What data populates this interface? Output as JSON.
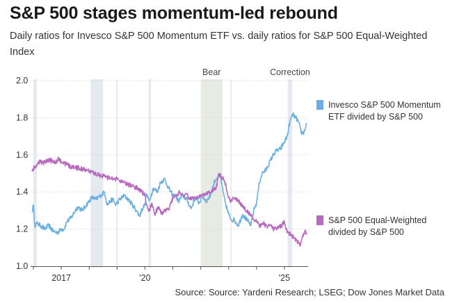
{
  "title": "S&P 500 stages momentum-led rebound",
  "subtitle": "Daily ratios for Invesco S&P 500 Momentum ETF vs. daily ratios for S&P 500 Equal-Weighted Index",
  "source": "Source: Source: Yardeni Research; LSEG; Dow Jones Market Data",
  "colors": {
    "momentum": "#6aafe0",
    "equal": "#b86ac0",
    "shade": "#e4eaef",
    "bear_shade": "#e6ebe3",
    "grid": "#d5d5d5"
  },
  "chart_data": {
    "type": "line",
    "title": "S&P 500 stages momentum-led rebound",
    "xlabel": "",
    "ylabel": "",
    "xlim": [
      2015.9,
      2025.85
    ],
    "ylim": [
      1.0,
      2.0
    ],
    "y_ticks": [
      1.0,
      1.2,
      1.4,
      1.6,
      1.8,
      2.0
    ],
    "y_tick_labels": [
      "1.0",
      "1.2",
      "1.4",
      "1.6",
      "1.8",
      "2.0"
    ],
    "x_ticks": [
      {
        "value": 2017.0,
        "label": "2017"
      },
      {
        "value": 2020.0,
        "label": "'20"
      },
      {
        "value": 2025.0,
        "label": "'25"
      }
    ],
    "grid": true,
    "shaded_periods": [
      {
        "start": 2016.0,
        "end": 2016.12,
        "label": "",
        "kind": "correction"
      },
      {
        "start": 2018.05,
        "end": 2018.5,
        "label": "",
        "kind": "correction"
      },
      {
        "start": 2018.97,
        "end": 2019.02,
        "label": "",
        "kind": "correction"
      },
      {
        "start": 2020.13,
        "end": 2020.22,
        "label": "",
        "kind": "correction"
      },
      {
        "start": 2022.0,
        "end": 2022.78,
        "label": "Bear",
        "kind": "bear"
      },
      {
        "start": 2023.07,
        "end": 2023.1,
        "label": "",
        "kind": "correction"
      },
      {
        "start": 2025.12,
        "end": 2025.28,
        "label": "Correction",
        "kind": "correction"
      }
    ],
    "series": [
      {
        "name": "Invesco S&P 500 Momentum ETF divided by S&P 500",
        "legend_lines": [
          "Invesco S&P 500 Momentum",
          "ETF divided by S&P 500"
        ],
        "x": [
          2015.95,
          2016.0,
          2016.05,
          2016.12,
          2016.25,
          2016.4,
          2016.55,
          2016.7,
          2016.85,
          2017.0,
          2017.1,
          2017.2,
          2017.35,
          2017.5,
          2017.6,
          2017.75,
          2017.9,
          2018.0,
          2018.1,
          2018.25,
          2018.4,
          2018.55,
          2018.65,
          2018.75,
          2018.85,
          2018.95,
          2019.1,
          2019.25,
          2019.4,
          2019.55,
          2019.7,
          2019.8,
          2019.9,
          2020.0,
          2020.05,
          2020.15,
          2020.3,
          2020.45,
          2020.55,
          2020.7,
          2020.85,
          2021.0,
          2021.1,
          2021.2,
          2021.35,
          2021.5,
          2021.65,
          2021.8,
          2021.95,
          2022.05,
          2022.2,
          2022.35,
          2022.5,
          2022.6,
          2022.7,
          2022.8,
          2022.9,
          2023.0,
          2023.1,
          2023.2,
          2023.35,
          2023.5,
          2023.65,
          2023.8,
          2023.9,
          2024.0,
          2024.1,
          2024.2,
          2024.35,
          2024.5,
          2024.6,
          2024.7,
          2024.85,
          2025.0,
          2025.1,
          2025.2,
          2025.3,
          2025.4,
          2025.5,
          2025.6,
          2025.7,
          2025.8
        ],
        "values": [
          1.29,
          1.33,
          1.22,
          1.23,
          1.22,
          1.2,
          1.22,
          1.19,
          1.18,
          1.2,
          1.2,
          1.24,
          1.26,
          1.3,
          1.32,
          1.3,
          1.33,
          1.35,
          1.37,
          1.36,
          1.38,
          1.4,
          1.33,
          1.35,
          1.36,
          1.33,
          1.36,
          1.38,
          1.36,
          1.33,
          1.3,
          1.27,
          1.31,
          1.33,
          1.39,
          1.35,
          1.42,
          1.4,
          1.45,
          1.47,
          1.42,
          1.38,
          1.38,
          1.35,
          1.38,
          1.36,
          1.31,
          1.37,
          1.34,
          1.38,
          1.35,
          1.38,
          1.46,
          1.48,
          1.49,
          1.4,
          1.33,
          1.28,
          1.25,
          1.25,
          1.22,
          1.28,
          1.25,
          1.22,
          1.3,
          1.34,
          1.45,
          1.5,
          1.52,
          1.57,
          1.6,
          1.62,
          1.63,
          1.67,
          1.7,
          1.78,
          1.82,
          1.8,
          1.78,
          1.72,
          1.72,
          1.77
        ]
      },
      {
        "name": "S&P 500 Equal-Weighted divided by S&P 500",
        "legend_lines": [
          "S&P 500 Equal-Weighted",
          "divided by S&P 500"
        ],
        "x": [
          2015.95,
          2016.05,
          2016.2,
          2016.4,
          2016.6,
          2016.8,
          2016.9,
          2017.0,
          2017.2,
          2017.4,
          2017.6,
          2017.8,
          2018.0,
          2018.2,
          2018.4,
          2018.6,
          2018.8,
          2019.0,
          2019.2,
          2019.4,
          2019.6,
          2019.75,
          2019.9,
          2020.0,
          2020.05,
          2020.15,
          2020.25,
          2020.35,
          2020.5,
          2020.6,
          2020.7,
          2020.85,
          2021.0,
          2021.1,
          2021.25,
          2021.4,
          2021.5,
          2021.6,
          2021.8,
          2022.0,
          2022.15,
          2022.3,
          2022.45,
          2022.55,
          2022.65,
          2022.75,
          2022.85,
          2022.95,
          2023.05,
          2023.15,
          2023.25,
          2023.4,
          2023.5,
          2023.65,
          2023.8,
          2023.9,
          2024.0,
          2024.1,
          2024.25,
          2024.4,
          2024.5,
          2024.6,
          2024.7,
          2024.8,
          2024.9,
          2025.0,
          2025.05,
          2025.15,
          2025.25,
          2025.35,
          2025.45,
          2025.55,
          2025.65,
          2025.75,
          2025.8
        ],
        "values": [
          1.52,
          1.53,
          1.56,
          1.56,
          1.57,
          1.56,
          1.58,
          1.56,
          1.55,
          1.53,
          1.53,
          1.52,
          1.51,
          1.5,
          1.49,
          1.48,
          1.47,
          1.47,
          1.45,
          1.44,
          1.43,
          1.42,
          1.4,
          1.38,
          1.33,
          1.3,
          1.34,
          1.28,
          1.32,
          1.28,
          1.3,
          1.31,
          1.37,
          1.38,
          1.4,
          1.38,
          1.39,
          1.36,
          1.37,
          1.38,
          1.39,
          1.4,
          1.41,
          1.42,
          1.5,
          1.48,
          1.46,
          1.4,
          1.35,
          1.36,
          1.37,
          1.34,
          1.32,
          1.3,
          1.27,
          1.25,
          1.24,
          1.22,
          1.23,
          1.21,
          1.22,
          1.2,
          1.2,
          1.21,
          1.22,
          1.24,
          1.2,
          1.18,
          1.17,
          1.15,
          1.14,
          1.11,
          1.16,
          1.19,
          1.18
        ]
      }
    ]
  }
}
